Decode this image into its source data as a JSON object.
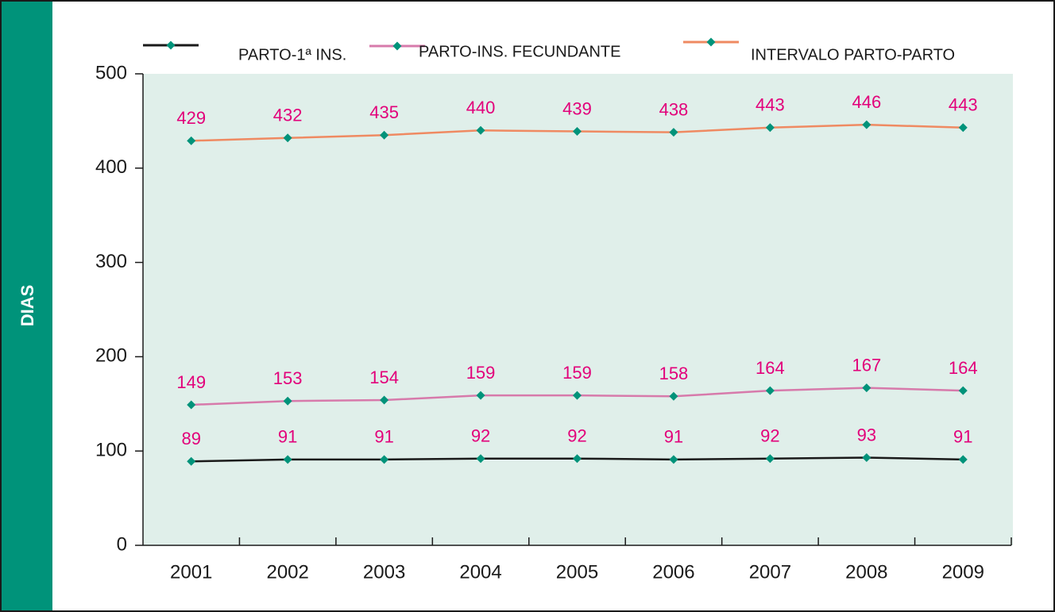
{
  "chart_data": {
    "type": "line",
    "y_label": "DIAS",
    "categories": [
      "2001",
      "2002",
      "2003",
      "2004",
      "2005",
      "2006",
      "2007",
      "2008",
      "2009"
    ],
    "series": [
      {
        "name": "PARTO-1ª INS.",
        "color": "#1a1a1a",
        "values": [
          89,
          91,
          91,
          92,
          92,
          91,
          92,
          93,
          91
        ]
      },
      {
        "name": "PARTO-INS. FECUNDANTE",
        "color": "#d77aab",
        "values": [
          149,
          153,
          154,
          159,
          159,
          158,
          164,
          167,
          164
        ]
      },
      {
        "name": "INTERVALO PARTO-PARTO",
        "color": "#ef8a62",
        "values": [
          429,
          432,
          435,
          440,
          439,
          438,
          443,
          446,
          443
        ]
      }
    ],
    "marker_color": "#00937a",
    "value_label_color": "#e2007a",
    "ylim": [
      0,
      500
    ],
    "yticks": [
      0,
      100,
      200,
      300,
      400,
      500
    ],
    "grid": false,
    "legend": "top"
  }
}
